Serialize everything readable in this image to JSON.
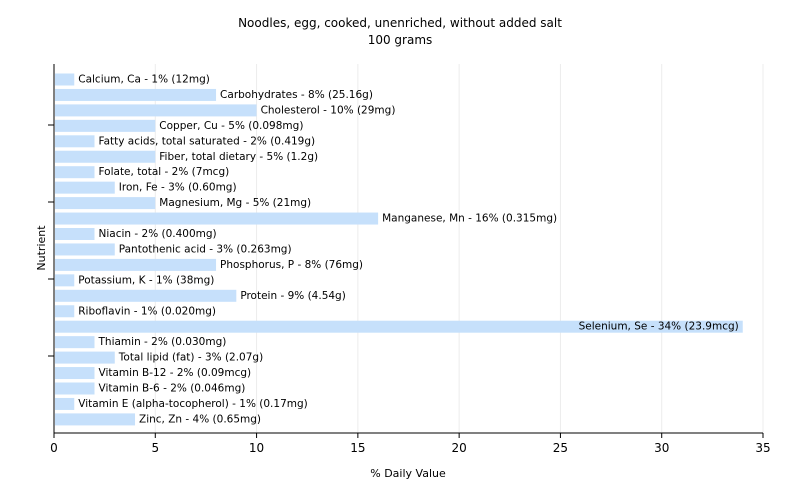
{
  "chart_data": {
    "type": "bar",
    "orientation": "horizontal",
    "title": "Noodles, egg, cooked, unenriched, without added salt",
    "subtitle": "100 grams",
    "xlabel": "% Daily Value",
    "ylabel": "Nutrient",
    "xlim": [
      0,
      35
    ],
    "xticks": [
      "0",
      "5",
      "10",
      "15",
      "20",
      "25",
      "30",
      "35"
    ],
    "grid": "vertical",
    "bar_color": "#c6e0fb",
    "categories": [
      "Calcium, Ca",
      "Carbohydrates",
      "Cholesterol",
      "Copper, Cu",
      "Fatty acids, total saturated",
      "Fiber, total dietary",
      "Folate, total",
      "Iron, Fe",
      "Magnesium, Mg",
      "Manganese, Mn",
      "Niacin",
      "Pantothenic acid",
      "Phosphorus, P",
      "Potassium, K",
      "Protein",
      "Riboflavin",
      "Selenium, Se",
      "Thiamin",
      "Total lipid (fat)",
      "Vitamin B-12",
      "Vitamin B-6",
      "Vitamin E (alpha-tocopherol)",
      "Zinc, Zn"
    ],
    "values": [
      1,
      8,
      10,
      5,
      2,
      5,
      2,
      3,
      5,
      16,
      2,
      3,
      8,
      1,
      9,
      1,
      34,
      2,
      3,
      2,
      2,
      1,
      4
    ],
    "bar_labels": [
      "Calcium, Ca - 1% (12mg)",
      "Carbohydrates - 8% (25.16g)",
      "Cholesterol - 10% (29mg)",
      "Copper, Cu - 5% (0.098mg)",
      "Fatty acids, total saturated - 2% (0.419g)",
      "Fiber, total dietary - 5% (1.2g)",
      "Folate, total - 2% (7mcg)",
      "Iron, Fe - 3% (0.60mg)",
      "Magnesium, Mg - 5% (21mg)",
      "Manganese, Mn - 16% (0.315mg)",
      "Niacin - 2% (0.400mg)",
      "Pantothenic acid - 3% (0.263mg)",
      "Phosphorus, P - 8% (76mg)",
      "Potassium, K - 1% (38mg)",
      "Protein - 9% (4.54g)",
      "Riboflavin - 1% (0.020mg)",
      "Selenium, Se - 34% (23.9mcg)",
      "Thiamin - 2% (0.030mg)",
      "Total lipid (fat) - 3% (2.07g)",
      "Vitamin B-12 - 2% (0.09mcg)",
      "Vitamin B-6 - 2% (0.046mg)",
      "Vitamin E (alpha-tocopherol) - 1% (0.17mg)",
      "Zinc, Zn - 4% (0.65mg)"
    ]
  }
}
